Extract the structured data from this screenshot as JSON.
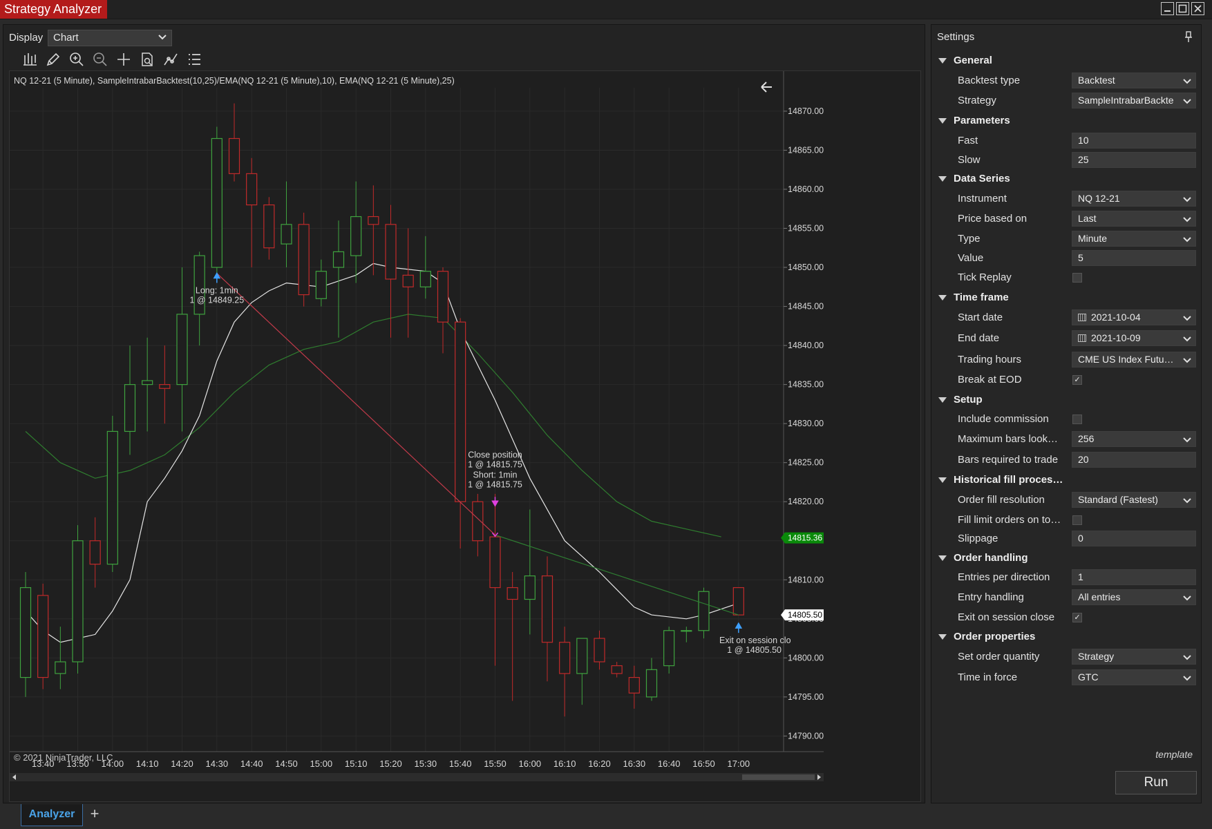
{
  "window": {
    "title": "Strategy Analyzer"
  },
  "toolbar": {
    "display_label": "Display",
    "display_value": "Chart"
  },
  "chart": {
    "title": "NQ 12-21 (5 Minute), SampleIntrabarBacktest(10,25)/EMA(NQ 12-21 (5 Minute),10), EMA(NQ 12-21 (5 Minute),25)",
    "copyright": "© 2021 NinjaTrader, LLC",
    "price_ticks": [
      "14870.00",
      "14865.00",
      "14860.00",
      "14855.00",
      "14850.00",
      "14845.00",
      "14840.00",
      "14835.00",
      "14830.00",
      "14825.00",
      "14820.00",
      "14815.00",
      "14810.00",
      "14805.00",
      "14800.00",
      "14795.00",
      "14790.00"
    ],
    "time_ticks": [
      "13:40",
      "13:50",
      "14:00",
      "14:10",
      "14:20",
      "14:30",
      "14:40",
      "14:50",
      "15:00",
      "15:10",
      "15:20",
      "15:30",
      "15:40",
      "15:50",
      "16:00",
      "16:10",
      "16:20",
      "16:30",
      "16:40",
      "16:50",
      "17:00"
    ],
    "price_marker_green": "14815.36",
    "price_marker_last": "14805.50",
    "annotations": {
      "long_1": "Long: 1min",
      "long_2": "1 @ 14849.25",
      "close_1": "Close position",
      "close_2": "1 @ 14815.75",
      "short_1": "Short: 1min",
      "short_2": "1 @ 14815.75",
      "exit_1": "Exit on session clo",
      "exit_2": "1 @ 14805.50"
    },
    "colors": {
      "up": "#3fa33f",
      "down": "#c12a2a",
      "fast_ema": "#e6e6e6",
      "slow_ema": "#2f7d2f",
      "trade_line_loss": "#c23a4a",
      "trade_line_win": "#2e7d32",
      "marker_green": "#0a8a0a"
    }
  },
  "chart_data": {
    "type": "candlestick",
    "title": "NQ 12-21 (5 Minute)",
    "ylim": [
      14788,
      14873
    ],
    "x_range": [
      "13:35",
      "17:05"
    ],
    "candles": [
      {
        "t": "13:35",
        "o": 14797.5,
        "h": 14811,
        "l": 14795,
        "c": 14809
      },
      {
        "t": "13:40",
        "o": 14808,
        "h": 14809.5,
        "l": 14796,
        "c": 14797.5
      },
      {
        "t": "13:45",
        "o": 14798,
        "h": 14804,
        "l": 14796,
        "c": 14799.5
      },
      {
        "t": "13:50",
        "o": 14799.5,
        "h": 14817,
        "l": 14798,
        "c": 14815
      },
      {
        "t": "13:55",
        "o": 14815,
        "h": 14818,
        "l": 14809,
        "c": 14812
      },
      {
        "t": "14:00",
        "o": 14812,
        "h": 14831,
        "l": 14811,
        "c": 14829
      },
      {
        "t": "14:05",
        "o": 14829,
        "h": 14840,
        "l": 14826,
        "c": 14835
      },
      {
        "t": "14:10",
        "o": 14835,
        "h": 14841,
        "l": 14829,
        "c": 14835.5
      },
      {
        "t": "14:15",
        "o": 14835,
        "h": 14840,
        "l": 14830,
        "c": 14834.5
      },
      {
        "t": "14:20",
        "o": 14835,
        "h": 14850,
        "l": 14829,
        "c": 14844
      },
      {
        "t": "14:25",
        "o": 14844,
        "h": 14852,
        "l": 14840,
        "c": 14851.5
      },
      {
        "t": "14:30",
        "o": 14850,
        "h": 14868,
        "l": 14849,
        "c": 14866.5
      },
      {
        "t": "14:35",
        "o": 14866.5,
        "h": 14871,
        "l": 14861,
        "c": 14862
      },
      {
        "t": "14:40",
        "o": 14862,
        "h": 14864,
        "l": 14850,
        "c": 14858
      },
      {
        "t": "14:45",
        "o": 14858,
        "h": 14859,
        "l": 14851,
        "c": 14852.5
      },
      {
        "t": "14:50",
        "o": 14853,
        "h": 14861,
        "l": 14850,
        "c": 14855.5
      },
      {
        "t": "14:55",
        "o": 14855.5,
        "h": 14857,
        "l": 14845,
        "c": 14846.5
      },
      {
        "t": "15:00",
        "o": 14846,
        "h": 14851,
        "l": 14845,
        "c": 14849.5
      },
      {
        "t": "15:05",
        "o": 14850,
        "h": 14856,
        "l": 14841,
        "c": 14852
      },
      {
        "t": "15:10",
        "o": 14851.5,
        "h": 14861,
        "l": 14848,
        "c": 14856.5
      },
      {
        "t": "15:15",
        "o": 14856.5,
        "h": 14860.5,
        "l": 14849,
        "c": 14855.5
      },
      {
        "t": "15:20",
        "o": 14855.5,
        "h": 14858,
        "l": 14841,
        "c": 14848.5
      },
      {
        "t": "15:25",
        "o": 14849,
        "h": 14855,
        "l": 14841,
        "c": 14847.5
      },
      {
        "t": "15:30",
        "o": 14847.5,
        "h": 14854,
        "l": 14846,
        "c": 14849.5
      },
      {
        "t": "15:35",
        "o": 14849.5,
        "h": 14850,
        "l": 14839,
        "c": 14843
      },
      {
        "t": "15:40",
        "o": 14843,
        "h": 14843.5,
        "l": 14814,
        "c": 14820
      },
      {
        "t": "15:45",
        "o": 14820,
        "h": 14821,
        "l": 14813,
        "c": 14815
      },
      {
        "t": "15:50",
        "o": 14815.5,
        "h": 14821,
        "l": 14799,
        "c": 14809
      },
      {
        "t": "15:55",
        "o": 14809,
        "h": 14811,
        "l": 14794.5,
        "c": 14807.5
      },
      {
        "t": "16:00",
        "o": 14807.5,
        "h": 14819,
        "l": 14803,
        "c": 14810.5
      },
      {
        "t": "16:05",
        "o": 14810.5,
        "h": 14813,
        "l": 14797,
        "c": 14802
      },
      {
        "t": "16:10",
        "o": 14802,
        "h": 14804,
        "l": 14792.5,
        "c": 14798
      },
      {
        "t": "16:15",
        "o": 14798,
        "h": 14802.5,
        "l": 14794,
        "c": 14802.5
      },
      {
        "t": "16:20",
        "o": 14802.5,
        "h": 14803.5,
        "l": 14798.5,
        "c": 14799.5
      },
      {
        "t": "16:25",
        "o": 14799,
        "h": 14799.5,
        "l": 14797.5,
        "c": 14798
      },
      {
        "t": "16:30",
        "o": 14797.5,
        "h": 14799,
        "l": 14793.5,
        "c": 14795.5
      },
      {
        "t": "16:35",
        "o": 14795,
        "h": 14800,
        "l": 14794.5,
        "c": 14798.5
      },
      {
        "t": "16:40",
        "o": 14799,
        "h": 14804,
        "l": 14798,
        "c": 14803.5
      },
      {
        "t": "16:45",
        "o": 14803.5,
        "h": 14804,
        "l": 14802,
        "c": 14803.5
      },
      {
        "t": "16:50",
        "o": 14803.5,
        "h": 14809,
        "l": 14802.5,
        "c": 14808.5
      },
      {
        "t": "17:00",
        "o": 14809,
        "h": 14809,
        "l": 14805.5,
        "c": 14805.5
      }
    ],
    "fast_ema": [
      {
        "t": "13:35",
        "v": 14806
      },
      {
        "t": "13:40",
        "v": 14803.5
      },
      {
        "t": "13:45",
        "v": 14802
      },
      {
        "t": "13:50",
        "v": 14802.5
      },
      {
        "t": "13:55",
        "v": 14803
      },
      {
        "t": "14:00",
        "v": 14806
      },
      {
        "t": "14:05",
        "v": 14810
      },
      {
        "t": "14:10",
        "v": 14820
      },
      {
        "t": "14:15",
        "v": 14823
      },
      {
        "t": "14:20",
        "v": 14826.5
      },
      {
        "t": "14:25",
        "v": 14831
      },
      {
        "t": "14:30",
        "v": 14838
      },
      {
        "t": "14:35",
        "v": 14843
      },
      {
        "t": "14:40",
        "v": 14845.5
      },
      {
        "t": "14:45",
        "v": 14847
      },
      {
        "t": "14:50",
        "v": 14848
      },
      {
        "t": "15:00",
        "v": 14847.5
      },
      {
        "t": "15:10",
        "v": 14849
      },
      {
        "t": "15:15",
        "v": 14850.5
      },
      {
        "t": "15:20",
        "v": 14850
      },
      {
        "t": "15:30",
        "v": 14849.5
      },
      {
        "t": "15:35",
        "v": 14848
      },
      {
        "t": "15:40",
        "v": 14842
      },
      {
        "t": "15:50",
        "v": 14833
      },
      {
        "t": "16:00",
        "v": 14823
      },
      {
        "t": "16:10",
        "v": 14815
      },
      {
        "t": "16:20",
        "v": 14811
      },
      {
        "t": "16:30",
        "v": 14806.5
      },
      {
        "t": "16:35",
        "v": 14805.5
      },
      {
        "t": "16:45",
        "v": 14805
      },
      {
        "t": "16:50",
        "v": 14805.5
      },
      {
        "t": "17:00",
        "v": 14807
      }
    ],
    "slow_ema": [
      {
        "t": "13:35",
        "v": 14829
      },
      {
        "t": "13:45",
        "v": 14825
      },
      {
        "t": "13:55",
        "v": 14823
      },
      {
        "t": "14:05",
        "v": 14824
      },
      {
        "t": "14:15",
        "v": 14826
      },
      {
        "t": "14:25",
        "v": 14829.5
      },
      {
        "t": "14:35",
        "v": 14834
      },
      {
        "t": "14:45",
        "v": 14837.5
      },
      {
        "t": "14:55",
        "v": 14839.5
      },
      {
        "t": "15:05",
        "v": 14840.5
      },
      {
        "t": "15:15",
        "v": 14843
      },
      {
        "t": "15:25",
        "v": 14844
      },
      {
        "t": "15:35",
        "v": 14843.5
      },
      {
        "t": "15:45",
        "v": 14839
      },
      {
        "t": "15:55",
        "v": 14834
      },
      {
        "t": "16:05",
        "v": 14828.5
      },
      {
        "t": "16:15",
        "v": 14824
      },
      {
        "t": "16:25",
        "v": 14820
      },
      {
        "t": "16:35",
        "v": 14817.5
      },
      {
        "t": "16:45",
        "v": 14816.5
      },
      {
        "t": "16:55",
        "v": 14815.5
      }
    ],
    "trades": [
      {
        "from_t": "14:30",
        "from_v": 14849.25,
        "to_t": "15:50",
        "to_v": 14815.75,
        "result": "loss"
      },
      {
        "from_t": "15:50",
        "from_v": 14815.75,
        "to_t": "17:00",
        "to_v": 14805.5,
        "result": "win"
      }
    ]
  },
  "settings": {
    "title": "Settings",
    "template_label": "template",
    "run_label": "Run",
    "sections": {
      "general": "General",
      "parameters": "Parameters",
      "data_series": "Data Series",
      "time_frame": "Time frame",
      "setup": "Setup",
      "historical": "Historical fill proces…",
      "order_handling": "Order handling",
      "order_properties": "Order properties"
    },
    "props": {
      "backtest_type": {
        "label": "Backtest type",
        "value": "Backtest"
      },
      "strategy": {
        "label": "Strategy",
        "value": "SampleIntrabarBackte"
      },
      "fast": {
        "label": "Fast",
        "value": "10"
      },
      "slow": {
        "label": "Slow",
        "value": "25"
      },
      "instrument": {
        "label": "Instrument",
        "value": "NQ 12-21"
      },
      "price_based_on": {
        "label": "Price based on",
        "value": "Last"
      },
      "type": {
        "label": "Type",
        "value": "Minute"
      },
      "value": {
        "label": "Value",
        "value": "5"
      },
      "tick_replay": {
        "label": "Tick Replay",
        "checked": false
      },
      "start_date": {
        "label": "Start date",
        "value": "2021-10-04"
      },
      "end_date": {
        "label": "End date",
        "value": "2021-10-09"
      },
      "trading_hours": {
        "label": "Trading hours",
        "value": "CME US Index Futu…"
      },
      "break_at_eod": {
        "label": "Break at EOD",
        "checked": true
      },
      "include_commission": {
        "label": "Include commission",
        "checked": false
      },
      "max_bars": {
        "label": "Maximum bars look…",
        "value": "256"
      },
      "bars_required": {
        "label": "Bars required to trade",
        "value": "20"
      },
      "order_fill_resolution": {
        "label": "Order fill resolution",
        "value": "Standard (Fastest)"
      },
      "fill_limit": {
        "label": "Fill limit orders on to…",
        "checked": false
      },
      "slippage": {
        "label": "Slippage",
        "value": "0"
      },
      "entries_per_direction": {
        "label": "Entries per direction",
        "value": "1"
      },
      "entry_handling": {
        "label": "Entry handling",
        "value": "All entries"
      },
      "exit_on_session_close": {
        "label": "Exit on session close",
        "checked": true
      },
      "set_order_quantity": {
        "label": "Set order quantity",
        "value": "Strategy"
      },
      "time_in_force": {
        "label": "Time in force",
        "value": "GTC"
      }
    },
    "check_mark": "✓"
  },
  "tabs": {
    "analyzer": "Analyzer",
    "add": "+"
  }
}
